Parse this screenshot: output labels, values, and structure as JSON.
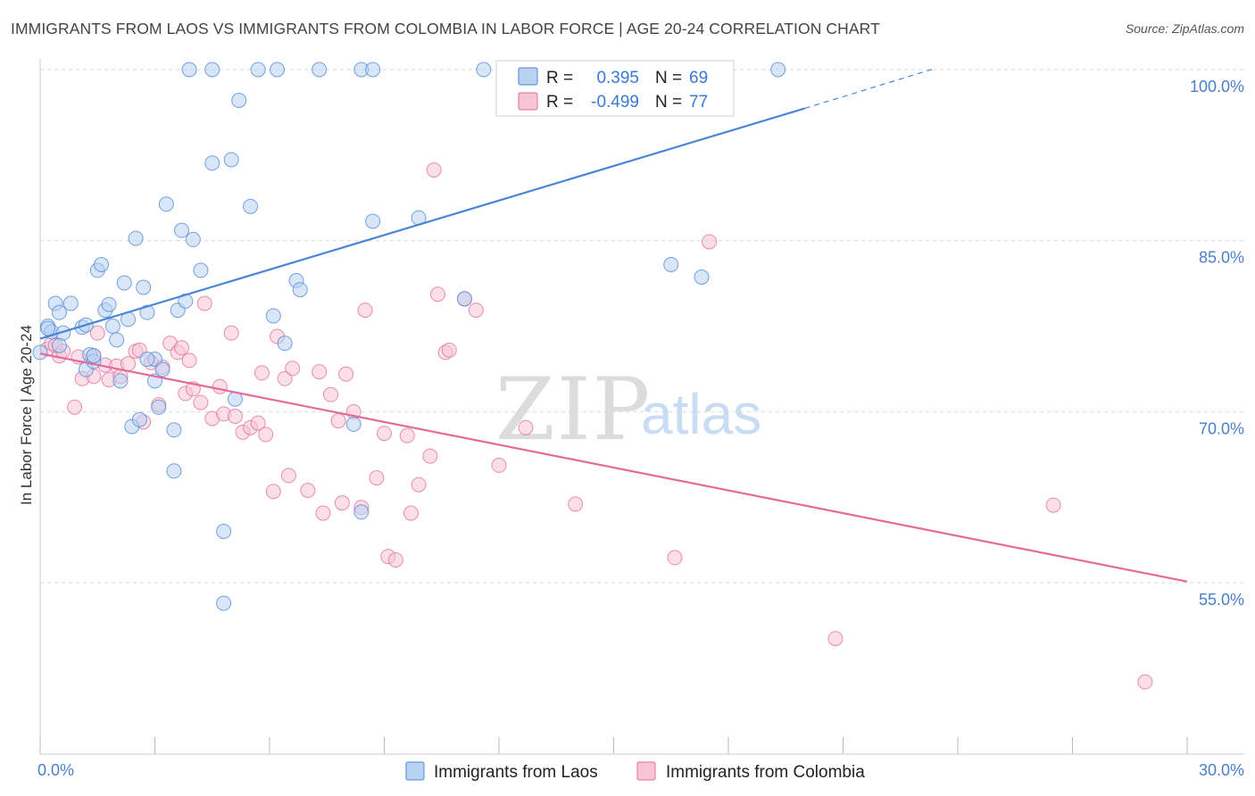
{
  "title": "IMMIGRANTS FROM LAOS VS IMMIGRANTS FROM COLOMBIA IN LABOR FORCE | AGE 20-24 CORRELATION CHART",
  "source": "Source: ZipAtlas.com",
  "watermark": {
    "part1": "ZIP",
    "part2": "atlas"
  },
  "colors": {
    "laos": "#4a86d8",
    "laos_fill": "#b9d2f2",
    "colombia": "#e46b98",
    "colombia_fill": "#f6c4d5",
    "tick_text": "#4a7fcb",
    "grid": "#d9d9d9"
  },
  "chart_data": {
    "type": "scatter",
    "title": "IMMIGRANTS FROM LAOS VS IMMIGRANTS FROM COLOMBIA IN LABOR FORCE | AGE 20-24 CORRELATION CHART",
    "xlabel": "",
    "ylabel": "In Labor Force | Age 20-24",
    "xlim": [
      0,
      30
    ],
    "ylim": [
      40,
      101
    ],
    "x_tick_labels": [
      "0.0%",
      "30.0%"
    ],
    "y_tick_values": [
      55,
      70,
      85,
      100
    ],
    "y_tick_labels": [
      "55.0%",
      "70.0%",
      "85.0%",
      "100.0%"
    ],
    "grid": "horizontal dashed",
    "legend_position": "top-center",
    "series": [
      {
        "name": "Immigrants from Laos",
        "R": "0.395",
        "N": "69",
        "trend": {
          "x1": 0,
          "y1": 76.4,
          "x2": 20.0,
          "y2": 96.6,
          "dashed_to_x": 23.4,
          "dashed_to_y": 100.1
        },
        "points": [
          [
            0.0,
            75.2
          ],
          [
            0.2,
            77.5
          ],
          [
            0.3,
            77.0
          ],
          [
            0.4,
            79.5
          ],
          [
            0.5,
            78.7
          ],
          [
            0.6,
            76.9
          ],
          [
            0.8,
            79.5
          ],
          [
            1.1,
            77.4
          ],
          [
            1.2,
            77.6
          ],
          [
            1.2,
            73.7
          ],
          [
            1.3,
            75.0
          ],
          [
            1.4,
            74.4
          ],
          [
            1.5,
            82.4
          ],
          [
            1.6,
            82.9
          ],
          [
            1.7,
            78.9
          ],
          [
            1.8,
            79.4
          ],
          [
            1.9,
            77.5
          ],
          [
            2.0,
            76.3
          ],
          [
            2.1,
            72.7
          ],
          [
            2.2,
            81.3
          ],
          [
            2.3,
            78.1
          ],
          [
            2.4,
            68.7
          ],
          [
            2.5,
            85.2
          ],
          [
            2.6,
            69.3
          ],
          [
            2.7,
            80.9
          ],
          [
            2.8,
            78.7
          ],
          [
            3.0,
            74.6
          ],
          [
            3.0,
            72.7
          ],
          [
            3.1,
            70.4
          ],
          [
            3.2,
            73.7
          ],
          [
            3.3,
            88.2
          ],
          [
            3.5,
            64.8
          ],
          [
            3.5,
            68.4
          ],
          [
            3.6,
            78.9
          ],
          [
            3.7,
            85.9
          ],
          [
            3.8,
            79.7
          ],
          [
            4.0,
            85.1
          ],
          [
            4.2,
            82.4
          ],
          [
            4.5,
            91.8
          ],
          [
            4.8,
            59.5
          ],
          [
            4.8,
            53.2
          ],
          [
            5.0,
            92.1
          ],
          [
            5.1,
            71.1
          ],
          [
            5.2,
            97.3
          ],
          [
            5.5,
            88.0
          ],
          [
            6.1,
            78.4
          ],
          [
            6.4,
            76.0
          ],
          [
            6.7,
            81.5
          ],
          [
            6.8,
            80.7
          ],
          [
            3.9,
            100.0
          ],
          [
            4.5,
            100.0
          ],
          [
            5.7,
            100.0
          ],
          [
            6.2,
            100.0
          ],
          [
            7.3,
            100.0
          ],
          [
            8.4,
            100.0
          ],
          [
            8.7,
            100.0
          ],
          [
            11.6,
            100.0
          ],
          [
            19.3,
            100.0
          ],
          [
            8.2,
            68.9
          ],
          [
            8.4,
            61.2
          ],
          [
            8.7,
            86.7
          ],
          [
            9.9,
            87.0
          ],
          [
            11.1,
            79.9
          ],
          [
            16.5,
            82.9
          ],
          [
            17.3,
            81.8
          ],
          [
            1.4,
            74.9
          ],
          [
            0.2,
            77.3
          ],
          [
            0.5,
            75.8
          ],
          [
            2.8,
            74.6
          ]
        ]
      },
      {
        "name": "Immigrants from Colombia",
        "R": "-0.499",
        "N": "77",
        "trend": {
          "x1": 0,
          "y1": 75.1,
          "x2": 30.0,
          "y2": 55.1
        },
        "points": [
          [
            0.2,
            75.5
          ],
          [
            0.3,
            76.0
          ],
          [
            0.4,
            75.8
          ],
          [
            0.5,
            74.9
          ],
          [
            0.6,
            75.3
          ],
          [
            0.9,
            70.4
          ],
          [
            1.0,
            74.8
          ],
          [
            1.1,
            72.9
          ],
          [
            1.4,
            74.9
          ],
          [
            1.4,
            73.1
          ],
          [
            1.5,
            76.9
          ],
          [
            1.7,
            74.1
          ],
          [
            1.8,
            72.8
          ],
          [
            2.0,
            74.0
          ],
          [
            2.1,
            73.1
          ],
          [
            2.3,
            74.2
          ],
          [
            2.5,
            75.3
          ],
          [
            2.6,
            75.4
          ],
          [
            2.7,
            69.1
          ],
          [
            2.9,
            74.3
          ],
          [
            3.1,
            70.6
          ],
          [
            3.2,
            73.9
          ],
          [
            3.4,
            76.0
          ],
          [
            3.6,
            75.2
          ],
          [
            3.7,
            75.6
          ],
          [
            3.8,
            71.6
          ],
          [
            3.9,
            74.5
          ],
          [
            4.0,
            72.0
          ],
          [
            4.2,
            70.8
          ],
          [
            4.3,
            79.5
          ],
          [
            4.5,
            69.4
          ],
          [
            4.7,
            72.2
          ],
          [
            4.8,
            69.8
          ],
          [
            5.0,
            76.9
          ],
          [
            5.1,
            69.6
          ],
          [
            5.3,
            68.2
          ],
          [
            5.5,
            68.6
          ],
          [
            5.7,
            69.0
          ],
          [
            5.8,
            73.4
          ],
          [
            5.9,
            68.0
          ],
          [
            6.1,
            63.0
          ],
          [
            6.2,
            76.6
          ],
          [
            6.4,
            72.9
          ],
          [
            6.5,
            64.4
          ],
          [
            6.6,
            73.8
          ],
          [
            7.0,
            63.1
          ],
          [
            7.3,
            73.5
          ],
          [
            7.4,
            61.1
          ],
          [
            7.6,
            71.5
          ],
          [
            7.8,
            69.2
          ],
          [
            7.9,
            62.0
          ],
          [
            8.0,
            73.3
          ],
          [
            8.2,
            70.0
          ],
          [
            8.4,
            61.6
          ],
          [
            8.5,
            78.9
          ],
          [
            8.8,
            64.2
          ],
          [
            9.0,
            68.1
          ],
          [
            9.1,
            57.3
          ],
          [
            9.3,
            57.0
          ],
          [
            9.6,
            67.9
          ],
          [
            9.7,
            61.1
          ],
          [
            9.9,
            63.6
          ],
          [
            10.2,
            66.1
          ],
          [
            10.3,
            91.2
          ],
          [
            10.4,
            80.3
          ],
          [
            10.6,
            75.2
          ],
          [
            10.7,
            75.4
          ],
          [
            11.1,
            79.9
          ],
          [
            11.4,
            78.9
          ],
          [
            12.0,
            65.3
          ],
          [
            12.7,
            68.6
          ],
          [
            14.0,
            61.9
          ],
          [
            16.6,
            57.2
          ],
          [
            17.5,
            84.9
          ],
          [
            20.8,
            50.1
          ],
          [
            26.5,
            61.8
          ],
          [
            28.9,
            46.3
          ]
        ]
      }
    ]
  }
}
